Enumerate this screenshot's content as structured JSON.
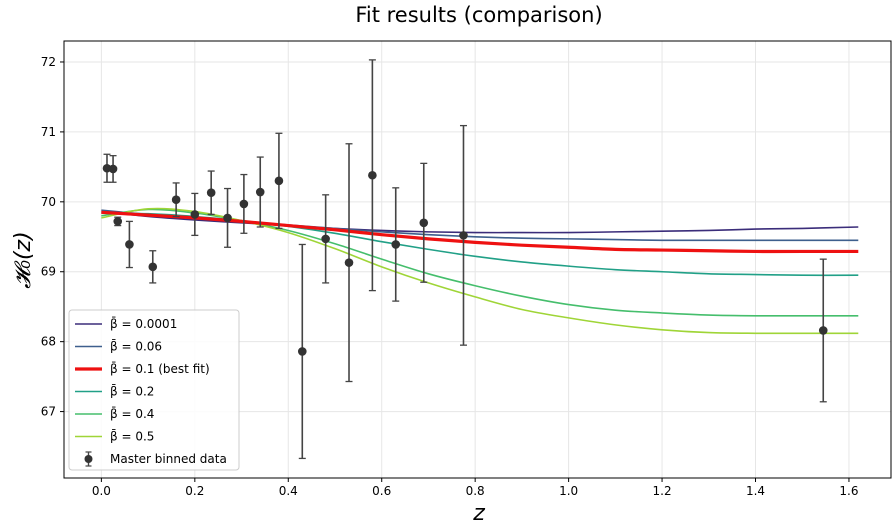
{
  "chart_data": {
    "type": "line",
    "title": "Fit results (comparison)",
    "xlabel": "z",
    "ylabel": "𝓗₀(z)",
    "xlim": [
      -0.08,
      1.69
    ],
    "ylim": [
      66.05,
      72.3
    ],
    "xticks": [
      "0.0",
      "0.2",
      "0.4",
      "0.6",
      "0.8",
      "1.0",
      "1.2",
      "1.4",
      "1.6"
    ],
    "yticks": [
      "67",
      "68",
      "69",
      "70",
      "71",
      "72"
    ],
    "grid": true,
    "legend_position": "lower-left",
    "series": [
      {
        "name": "β̄ = 0.0001",
        "color": "#3b2d7a",
        "width": 1.6,
        "x": [
          0.0,
          0.1,
          0.2,
          0.3,
          0.4,
          0.5,
          0.6,
          0.7,
          0.8,
          0.9,
          1.0,
          1.1,
          1.2,
          1.3,
          1.4,
          1.5,
          1.62
        ],
        "y": [
          69.86,
          69.79,
          69.74,
          69.7,
          69.66,
          69.62,
          69.59,
          69.57,
          69.56,
          69.56,
          69.56,
          69.57,
          69.58,
          69.59,
          69.61,
          69.62,
          69.64
        ]
      },
      {
        "name": "β̄ = 0.06",
        "color": "#3e5f8d",
        "width": 1.6,
        "x": [
          0.0,
          0.1,
          0.2,
          0.3,
          0.4,
          0.5,
          0.6,
          0.7,
          0.8,
          0.9,
          1.0,
          1.1,
          1.2,
          1.3,
          1.4,
          1.5,
          1.62
        ],
        "y": [
          69.88,
          69.82,
          69.77,
          69.72,
          69.67,
          69.62,
          69.57,
          69.53,
          69.5,
          69.48,
          69.47,
          69.46,
          69.45,
          69.45,
          69.45,
          69.45,
          69.45
        ]
      },
      {
        "name": "β̄ = 0.1 (best fit)",
        "color": "#ee1111",
        "width": 3.2,
        "x": [
          0.0,
          0.1,
          0.2,
          0.3,
          0.4,
          0.5,
          0.6,
          0.7,
          0.8,
          0.9,
          1.0,
          1.1,
          1.2,
          1.3,
          1.4,
          1.5,
          1.62
        ],
        "y": [
          69.85,
          69.81,
          69.77,
          69.72,
          69.66,
          69.6,
          69.53,
          69.47,
          69.42,
          69.38,
          69.35,
          69.32,
          69.31,
          69.3,
          69.29,
          69.29,
          69.29
        ]
      },
      {
        "name": "β̄ = 0.2",
        "color": "#21a087",
        "width": 1.6,
        "x": [
          0.0,
          0.1,
          0.2,
          0.3,
          0.4,
          0.5,
          0.6,
          0.7,
          0.8,
          0.9,
          1.0,
          1.1,
          1.2,
          1.3,
          1.4,
          1.5,
          1.62
        ],
        "y": [
          69.84,
          69.83,
          69.79,
          69.73,
          69.65,
          69.55,
          69.43,
          69.32,
          69.22,
          69.14,
          69.08,
          69.03,
          69.0,
          68.97,
          68.96,
          68.95,
          68.95
        ]
      },
      {
        "name": "β̄ = 0.4",
        "color": "#45be6c",
        "width": 1.6,
        "x": [
          0.0,
          0.1,
          0.2,
          0.3,
          0.4,
          0.5,
          0.6,
          0.7,
          0.8,
          0.9,
          1.0,
          1.1,
          1.2,
          1.3,
          1.4,
          1.5,
          1.62
        ],
        "y": [
          69.8,
          69.89,
          69.84,
          69.73,
          69.59,
          69.4,
          69.18,
          68.97,
          68.8,
          68.65,
          68.53,
          68.45,
          68.41,
          68.38,
          68.37,
          68.37,
          68.37
        ]
      },
      {
        "name": "β̄ = 0.5",
        "color": "#9fd537",
        "width": 1.6,
        "x": [
          0.0,
          0.1,
          0.2,
          0.3,
          0.4,
          0.5,
          0.6,
          0.7,
          0.8,
          0.9,
          1.0,
          1.1,
          1.2,
          1.3,
          1.4,
          1.5,
          1.62
        ],
        "y": [
          69.77,
          69.9,
          69.86,
          69.73,
          69.56,
          69.33,
          69.07,
          68.84,
          68.64,
          68.46,
          68.34,
          68.24,
          68.17,
          68.13,
          68.12,
          68.12,
          68.12
        ]
      }
    ],
    "scatter": {
      "name": "Master binned data",
      "color": "#333333",
      "points": [
        {
          "x": 0.012,
          "y": 70.48,
          "err": 0.2
        },
        {
          "x": 0.025,
          "y": 70.47,
          "err": 0.19
        },
        {
          "x": 0.035,
          "y": 69.72,
          "err": 0.06
        },
        {
          "x": 0.06,
          "y": 69.39,
          "err": 0.33
        },
        {
          "x": 0.11,
          "y": 69.07,
          "err": 0.23
        },
        {
          "x": 0.16,
          "y": 70.03,
          "err": 0.24
        },
        {
          "x": 0.2,
          "y": 69.82,
          "err": 0.3
        },
        {
          "x": 0.235,
          "y": 70.13,
          "err": 0.31
        },
        {
          "x": 0.27,
          "y": 69.77,
          "err": 0.42
        },
        {
          "x": 0.305,
          "y": 69.97,
          "err": 0.42
        },
        {
          "x": 0.34,
          "y": 70.14,
          "err": 0.5
        },
        {
          "x": 0.38,
          "y": 70.3,
          "err": 0.68
        },
        {
          "x": 0.43,
          "y": 67.86,
          "err": 1.53
        },
        {
          "x": 0.48,
          "y": 69.47,
          "err": 0.63
        },
        {
          "x": 0.53,
          "y": 69.13,
          "err": 1.7
        },
        {
          "x": 0.58,
          "y": 70.38,
          "err": 1.65
        },
        {
          "x": 0.63,
          "y": 69.39,
          "err": 0.81
        },
        {
          "x": 0.69,
          "y": 69.7,
          "err": 0.85
        },
        {
          "x": 0.775,
          "y": 69.52,
          "err": 1.57
        },
        {
          "x": 1.545,
          "y": 68.16,
          "err": 1.02
        }
      ]
    }
  }
}
